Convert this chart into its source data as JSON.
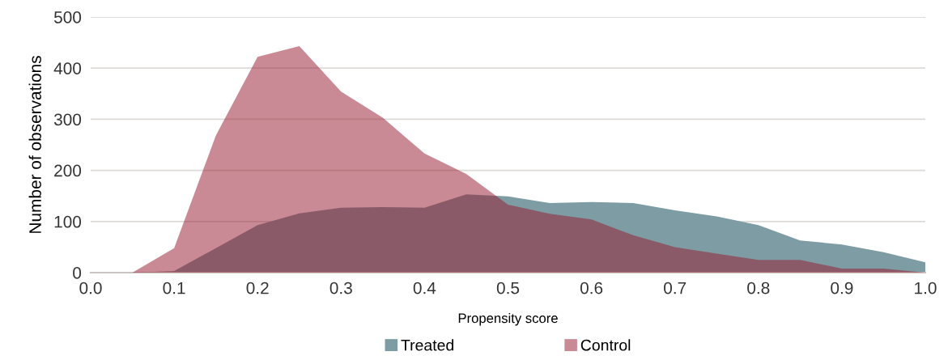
{
  "chart_data": {
    "type": "area",
    "xlabel": "Propensity score",
    "ylabel": "Number of observations",
    "x": [
      0,
      0.05,
      0.1,
      0.15,
      0.2,
      0.25,
      0.3,
      0.35,
      0.4,
      0.45,
      0.5,
      0.55,
      0.6,
      0.65,
      0.7,
      0.75,
      0.8,
      0.85,
      0.9,
      0.95,
      1.0
    ],
    "series": [
      {
        "name": "Treated",
        "color": "#7d9ca3",
        "values": [
          0,
          0,
          3,
          48,
          93,
          116,
          127,
          128,
          127,
          153,
          149,
          136,
          138,
          136,
          122,
          110,
          93,
          63,
          55,
          40,
          20
        ]
      },
      {
        "name": "Control",
        "color": "#c98a95",
        "values": [
          0,
          0,
          48,
          268,
          422,
          443,
          354,
          303,
          233,
          193,
          133,
          115,
          104,
          73,
          50,
          37,
          25,
          25,
          8,
          8,
          0
        ]
      }
    ],
    "xlim": [
      0,
      1
    ],
    "ylim": [
      0,
      500
    ],
    "xticks": [
      {
        "value": 0,
        "label": "0.0"
      },
      {
        "value": 0.1,
        "label": "0.1"
      },
      {
        "value": 0.2,
        "label": "0.2"
      },
      {
        "value": 0.3,
        "label": "0.3"
      },
      {
        "value": 0.4,
        "label": "0.4"
      },
      {
        "value": 0.5,
        "label": "0.5"
      },
      {
        "value": 0.6,
        "label": "0.6"
      },
      {
        "value": 0.7,
        "label": "0.7"
      },
      {
        "value": 0.8,
        "label": "0.8"
      },
      {
        "value": 0.9,
        "label": "0.9"
      },
      {
        "value": 1.0,
        "label": "1.0"
      }
    ],
    "yticks": [
      0,
      100,
      200,
      300,
      400,
      500
    ],
    "grid": "y",
    "legend": "bottom"
  }
}
